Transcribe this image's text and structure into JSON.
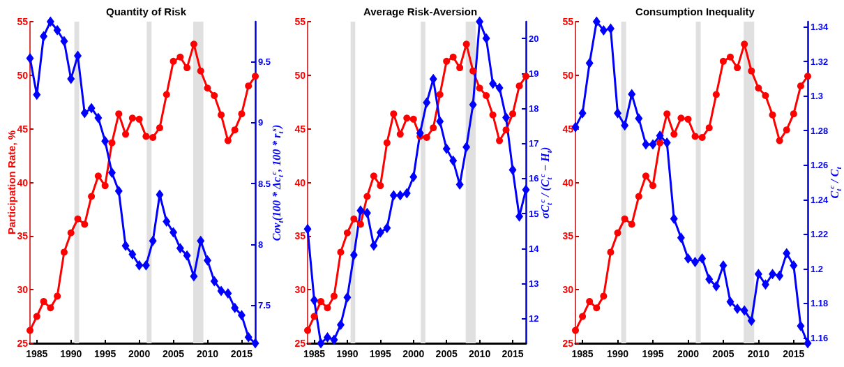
{
  "chart_data": [
    {
      "type": "line",
      "title": "Quantity of Risk",
      "ylabel": "Participation Rate, %",
      "y2label": "Cov$_{t}$(100 * Δc$_{t}$$^{c}$, 100 * r$_{t}$$^{s}$)",
      "x": [
        1984,
        1985,
        1986,
        1987,
        1988,
        1989,
        1990,
        1991,
        1992,
        1993,
        1994,
        1995,
        1996,
        1997,
        1998,
        1999,
        2000,
        2001,
        2002,
        2003,
        2004,
        2005,
        2006,
        2007,
        2008,
        2009,
        2010,
        2011,
        2012,
        2013,
        2014,
        2015,
        2016,
        2017
      ],
      "xlim": [
        1984,
        2017
      ],
      "xticks": [
        1985,
        1990,
        1995,
        2000,
        2005,
        2010,
        2015
      ],
      "ylim": [
        25,
        55
      ],
      "yticks": [
        25,
        30,
        35,
        40,
        45,
        50,
        55
      ],
      "y2lim": [
        7.19,
        9.83
      ],
      "y2ticks": [
        7.5,
        8,
        8.5,
        9,
        9.5
      ],
      "bands": [
        {
          "axis": "x",
          "from": 1990.5,
          "to": 1991.2,
          "color": "#e0e0e0"
        },
        {
          "axis": "x",
          "from": 2001.1,
          "to": 2001.8,
          "color": "#e0e0e0"
        },
        {
          "axis": "x",
          "from": 2007.9,
          "to": 2009.4,
          "color": "#e0e0e0"
        }
      ],
      "series": [
        {
          "color": "#ff0000",
          "marker": "circle",
          "values": [
            26.2,
            27.5,
            28.9,
            28.3,
            29.4,
            33.5,
            35.3,
            36.6,
            36.1,
            38.7,
            40.6,
            39.7,
            43.7,
            46.4,
            44.5,
            46.0,
            45.9,
            44.3,
            44.2,
            45.1,
            48.2,
            51.3,
            51.7,
            50.7,
            52.9,
            50.4,
            48.8,
            48.1,
            46.3,
            43.9,
            44.9,
            46.4,
            49.0,
            49.9
          ]
        },
        {
          "color": "#0000ff",
          "marker": "diamond",
          "axis": "y2",
          "values": [
            9.53,
            9.23,
            9.71,
            9.83,
            9.76,
            9.67,
            9.36,
            9.55,
            9.08,
            9.12,
            9.04,
            8.85,
            8.59,
            8.44,
            7.99,
            7.92,
            7.83,
            7.83,
            8.03,
            8.41,
            8.19,
            8.1,
            7.97,
            7.91,
            7.74,
            8.03,
            7.87,
            7.7,
            7.62,
            7.6,
            7.48,
            7.42,
            7.24,
            7.19
          ]
        }
      ]
    },
    {
      "type": "line",
      "title": "Average Risk-Aversion",
      "y2label": "σC$_{t}$$^{c}$ / (C$_{t}$$^{c}$ − H$_{t}$)",
      "x": [
        1984,
        1985,
        1986,
        1987,
        1988,
        1989,
        1990,
        1991,
        1992,
        1993,
        1994,
        1995,
        1996,
        1997,
        1998,
        1999,
        2000,
        2001,
        2002,
        2003,
        2004,
        2005,
        2006,
        2007,
        2008,
        2009,
        2010,
        2011,
        2012,
        2013,
        2014,
        2015,
        2016,
        2017
      ],
      "xlim": [
        1984,
        2017
      ],
      "xticks": [
        1985,
        1990,
        1995,
        2000,
        2005,
        2010,
        2015
      ],
      "ylim": [
        25,
        55
      ],
      "yticks": [
        25,
        30,
        35,
        40,
        45,
        50,
        55
      ],
      "y2lim": [
        11.3,
        20.48
      ],
      "y2ticks": [
        12,
        13,
        14,
        15,
        16,
        17,
        18,
        19,
        20
      ],
      "bands": [
        {
          "axis": "x",
          "from": 1990.5,
          "to": 1991.2,
          "color": "#e0e0e0"
        },
        {
          "axis": "x",
          "from": 2001.1,
          "to": 2001.8,
          "color": "#e0e0e0"
        },
        {
          "axis": "x",
          "from": 2007.9,
          "to": 2009.4,
          "color": "#e0e0e0"
        }
      ],
      "series": [
        {
          "color": "#ff0000",
          "marker": "circle",
          "values": [
            26.2,
            27.5,
            28.9,
            28.3,
            29.4,
            33.5,
            35.3,
            36.6,
            36.1,
            38.7,
            40.6,
            39.7,
            43.7,
            46.4,
            44.5,
            46.0,
            45.9,
            44.3,
            44.2,
            45.1,
            48.2,
            51.3,
            51.7,
            50.7,
            52.9,
            50.4,
            48.8,
            48.1,
            46.3,
            43.9,
            44.9,
            46.4,
            49.0,
            49.9
          ]
        },
        {
          "color": "#0000ff",
          "marker": "diamond",
          "axis": "y2",
          "values": [
            14.56,
            12.53,
            11.3,
            11.47,
            11.4,
            11.83,
            12.61,
            13.82,
            15.09,
            15.02,
            14.09,
            14.46,
            14.59,
            15.52,
            15.52,
            15.58,
            16.05,
            17.3,
            18.17,
            18.84,
            17.63,
            16.85,
            16.51,
            15.83,
            16.9,
            18.11,
            20.48,
            20.0,
            18.71,
            18.59,
            17.74,
            16.25,
            14.92,
            15.68
          ]
        }
      ]
    },
    {
      "type": "line",
      "title": "Consumption Inequality",
      "y2label": "C$_{t}$$^{c}$ / C$_{t}$",
      "x": [
        1984,
        1985,
        1986,
        1987,
        1988,
        1989,
        1990,
        1991,
        1992,
        1993,
        1994,
        1995,
        1996,
        1997,
        1998,
        1999,
        2000,
        2001,
        2002,
        2003,
        2004,
        2005,
        2006,
        2007,
        2008,
        2009,
        2010,
        2011,
        2012,
        2013,
        2014,
        2015,
        2016,
        2017
      ],
      "xlim": [
        1984,
        2017
      ],
      "xticks": [
        1985,
        1990,
        1995,
        2000,
        2005,
        2010,
        2015
      ],
      "ylim": [
        25,
        55
      ],
      "yticks": [
        25,
        30,
        35,
        40,
        45,
        50,
        55
      ],
      "y2lim": [
        1.157,
        1.343
      ],
      "y2ticks": [
        1.16,
        1.18,
        1.2,
        1.22,
        1.24,
        1.26,
        1.28,
        1.3,
        1.32,
        1.34
      ],
      "bands": [
        {
          "axis": "x",
          "from": 1990.5,
          "to": 1991.2,
          "color": "#e0e0e0"
        },
        {
          "axis": "x",
          "from": 2001.1,
          "to": 2001.8,
          "color": "#e0e0e0"
        },
        {
          "axis": "x",
          "from": 2007.9,
          "to": 2009.4,
          "color": "#e0e0e0"
        }
      ],
      "series": [
        {
          "color": "#ff0000",
          "marker": "circle",
          "values": [
            26.2,
            27.5,
            28.9,
            28.3,
            29.4,
            33.5,
            35.3,
            36.6,
            36.1,
            38.7,
            40.6,
            39.7,
            43.7,
            46.4,
            44.5,
            46.0,
            45.9,
            44.3,
            44.2,
            45.1,
            48.2,
            51.3,
            51.7,
            50.7,
            52.9,
            50.4,
            48.8,
            48.1,
            46.3,
            43.9,
            44.9,
            46.4,
            49.0,
            49.9
          ]
        },
        {
          "color": "#0000ff",
          "marker": "diamond",
          "axis": "y2",
          "values": [
            1.282,
            1.29,
            1.319,
            1.343,
            1.338,
            1.339,
            1.29,
            1.283,
            1.301,
            1.287,
            1.272,
            1.272,
            1.277,
            1.273,
            1.229,
            1.218,
            1.206,
            1.204,
            1.206,
            1.194,
            1.19,
            1.202,
            1.181,
            1.177,
            1.176,
            1.17,
            1.197,
            1.191,
            1.197,
            1.196,
            1.209,
            1.202,
            1.167,
            1.157
          ]
        }
      ]
    }
  ]
}
